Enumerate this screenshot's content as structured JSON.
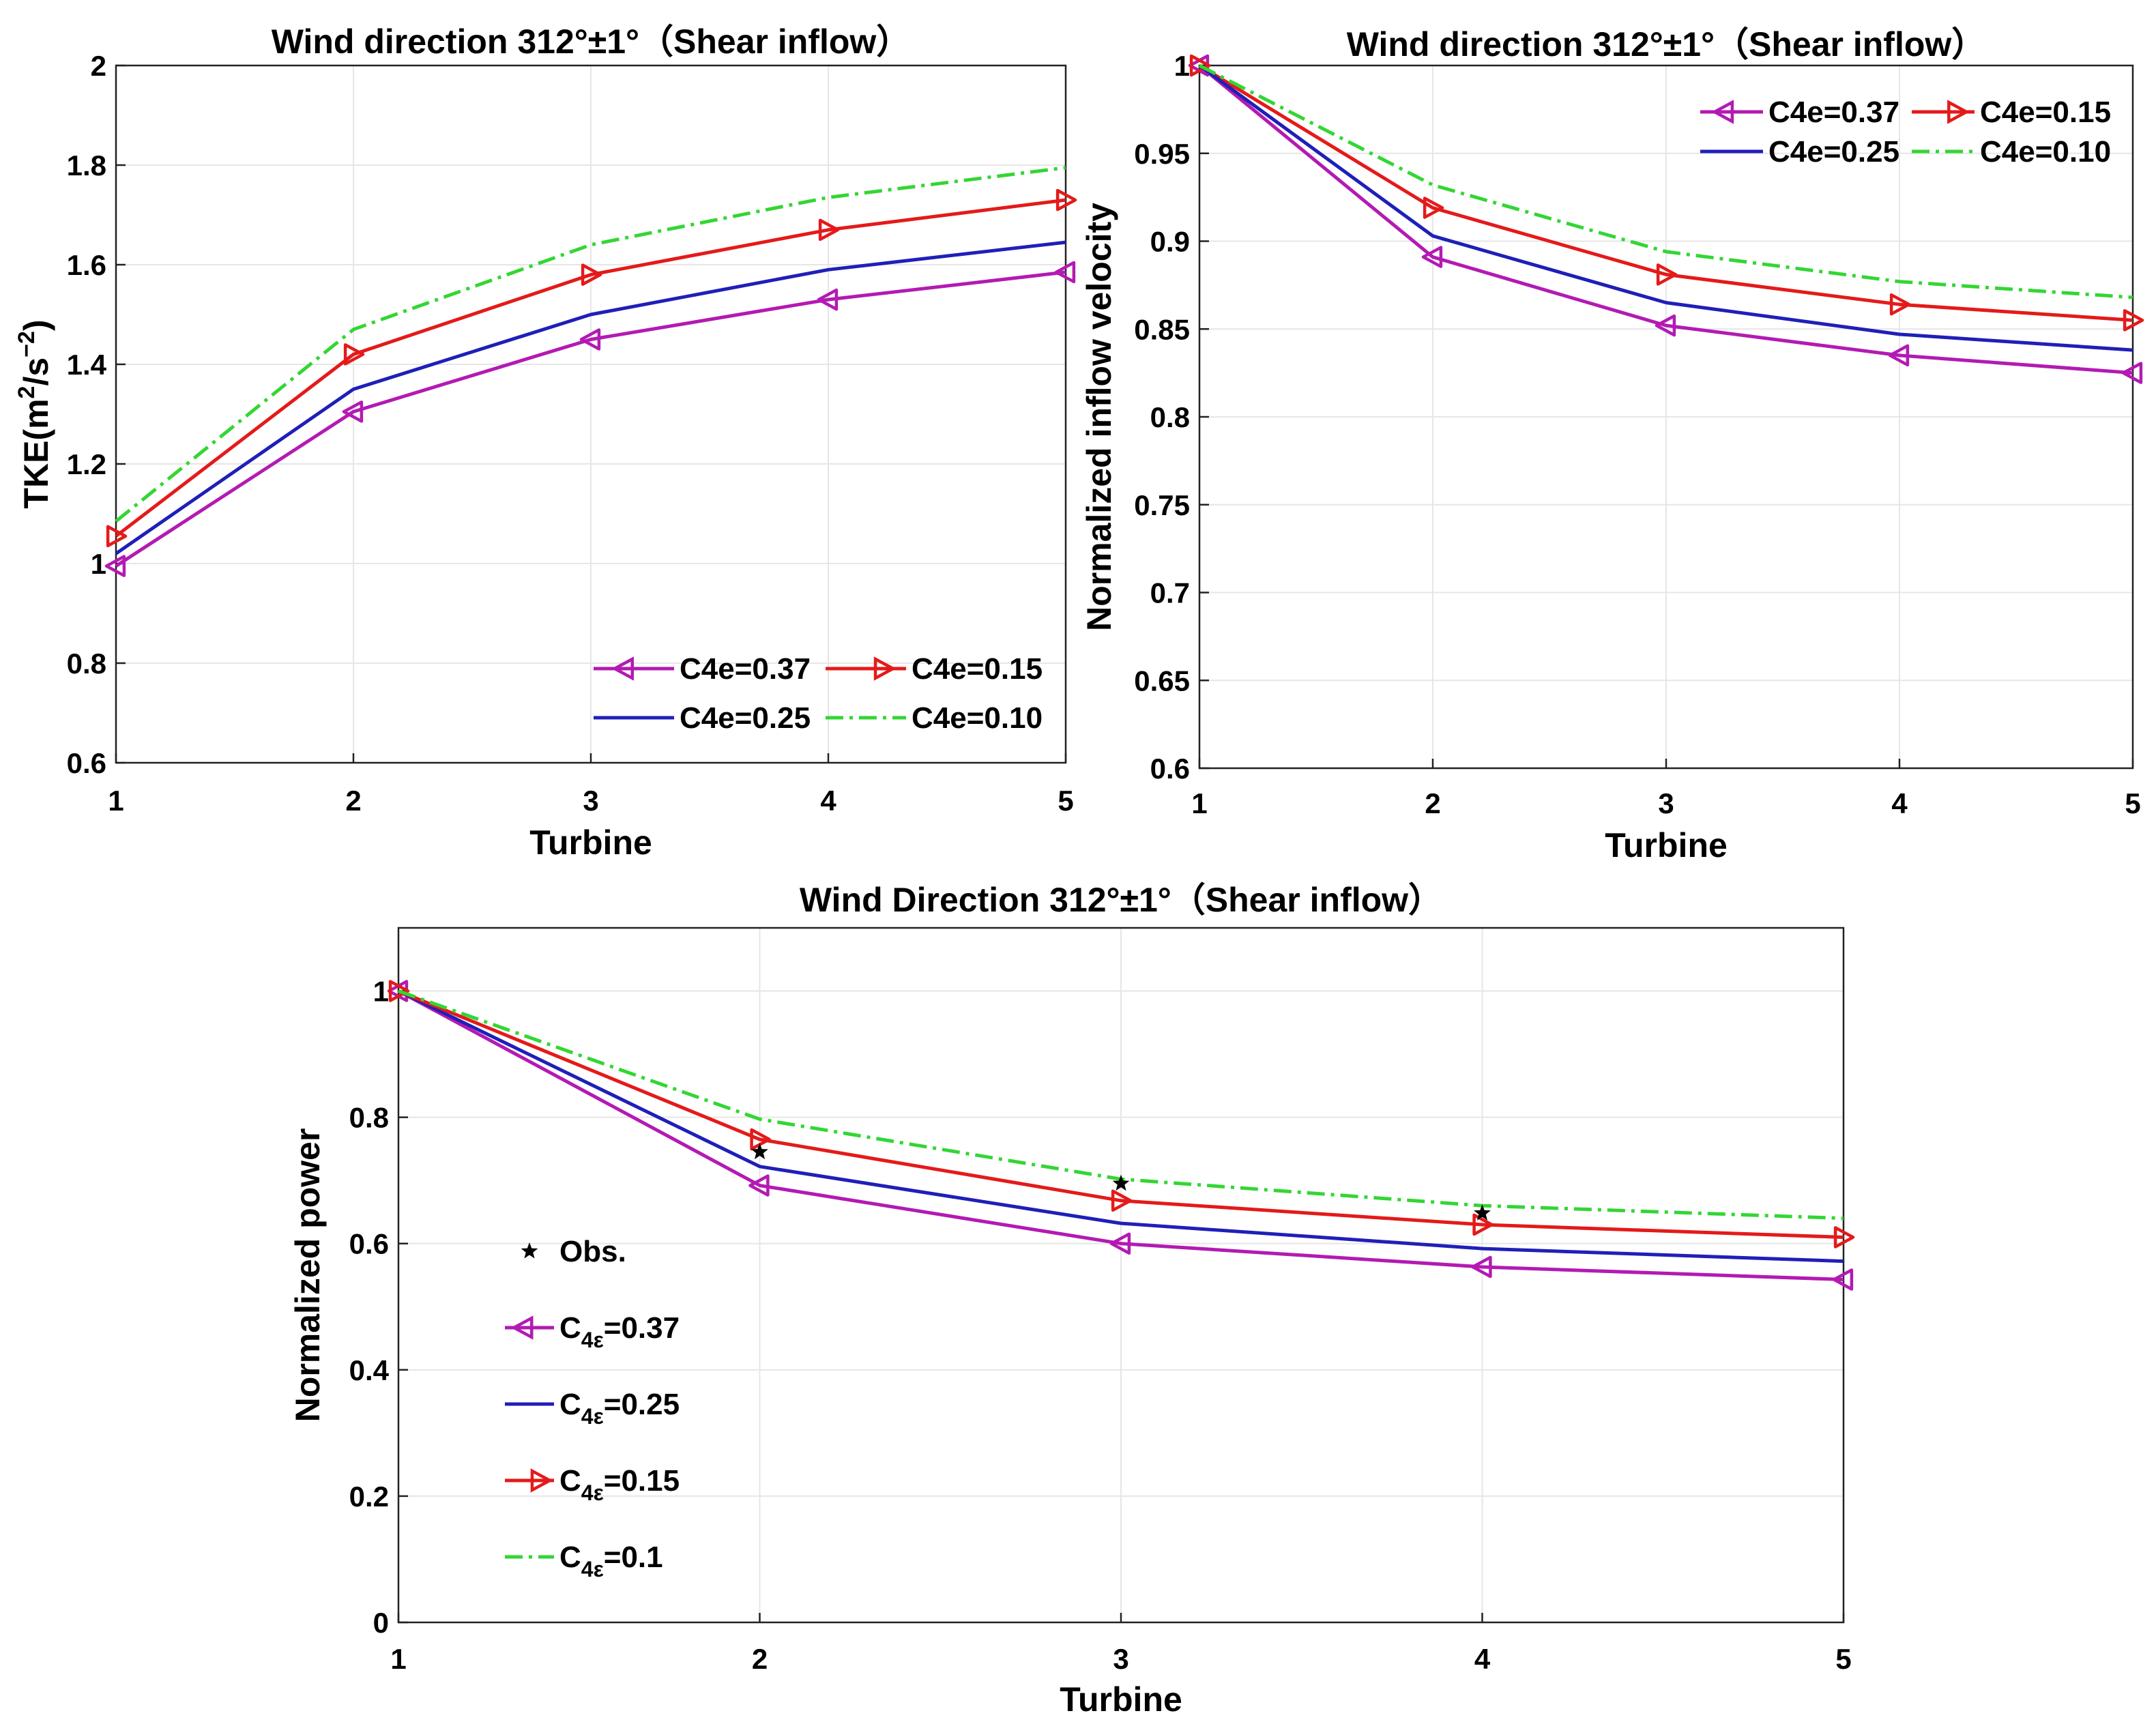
{
  "colors": {
    "c037": "#b31ab3",
    "c025": "#1f1fb8",
    "c015": "#e41a1a",
    "c010": "#33d633",
    "obs": "#000000"
  },
  "chart_data": [
    {
      "type": "line",
      "title": "Wind direction 312°±1°（Shear inflow）",
      "xlabel": "Turbine",
      "ylabel": "TKE(m2/s−2)",
      "ylabel_parts": {
        "base": "TKE(m",
        "sup1": "2",
        "mid": "/s",
        "sup2": "−2",
        "end": ")"
      },
      "x": [
        1,
        2,
        3,
        4,
        5
      ],
      "xlim": [
        1,
        5
      ],
      "ylim": [
        0.6,
        2
      ],
      "xticks": [
        "1",
        "2",
        "3",
        "4",
        "5"
      ],
      "yticks": [
        "0.6",
        "0.8",
        "1",
        "1.2",
        "1.4",
        "1.6",
        "1.8",
        "2"
      ],
      "ytick_values": [
        0.6,
        0.8,
        1.0,
        1.2,
        1.4,
        1.6,
        1.8,
        2.0
      ],
      "grid": true,
      "legend_position": "bottom-right",
      "legend_layout": "2x2",
      "series": [
        {
          "name": "C4e=0.37",
          "values": [
            0.995,
            1.305,
            1.45,
            1.53,
            1.585
          ],
          "color_key": "c037",
          "marker": "tri-left",
          "dash": "solid"
        },
        {
          "name": "C4e=0.15",
          "values": [
            1.055,
            1.42,
            1.58,
            1.67,
            1.73
          ],
          "color_key": "c015",
          "marker": "tri-right",
          "dash": "solid"
        },
        {
          "name": "C4e=0.25",
          "values": [
            1.02,
            1.35,
            1.5,
            1.59,
            1.645
          ],
          "color_key": "c025",
          "marker": "none",
          "dash": "solid"
        },
        {
          "name": "C4e=0.10",
          "values": [
            1.085,
            1.47,
            1.64,
            1.735,
            1.795
          ],
          "color_key": "c010",
          "marker": "none",
          "dash": "dashdot"
        }
      ]
    },
    {
      "type": "line",
      "title": "Wind direction 312°±1°（Shear inflow）",
      "xlabel": "Turbine",
      "ylabel": "Normalized inflow velocity",
      "x": [
        1,
        2,
        3,
        4,
        5
      ],
      "xlim": [
        1,
        5
      ],
      "ylim": [
        0.6,
        1.0
      ],
      "xticks": [
        "1",
        "2",
        "3",
        "4",
        "5"
      ],
      "yticks": [
        "0.6",
        "0.65",
        "0.7",
        "0.75",
        "0.8",
        "0.85",
        "0.9",
        "0.95",
        "1"
      ],
      "ytick_values": [
        0.6,
        0.65,
        0.7,
        0.75,
        0.8,
        0.85,
        0.9,
        0.95,
        1.0
      ],
      "grid": true,
      "legend_position": "top-right",
      "legend_layout": "2x2",
      "series": [
        {
          "name": "C4e=0.37",
          "values": [
            1.0,
            0.891,
            0.852,
            0.835,
            0.825
          ],
          "color_key": "c037",
          "marker": "tri-left",
          "dash": "solid"
        },
        {
          "name": "C4e=0.15",
          "values": [
            1.0,
            0.919,
            0.881,
            0.864,
            0.855
          ],
          "color_key": "c015",
          "marker": "tri-right",
          "dash": "solid"
        },
        {
          "name": "C4e=0.25",
          "values": [
            1.0,
            0.903,
            0.865,
            0.847,
            0.838
          ],
          "color_key": "c025",
          "marker": "none",
          "dash": "solid"
        },
        {
          "name": "C4e=0.10",
          "values": [
            1.0,
            0.932,
            0.894,
            0.877,
            0.868
          ],
          "color_key": "c010",
          "marker": "none",
          "dash": "dashdot"
        }
      ]
    },
    {
      "type": "line",
      "title": "Wind Direction 312°±1°（Shear inflow）",
      "xlabel": "Turbine",
      "ylabel": "Normalized power",
      "x": [
        1,
        2,
        3,
        4,
        5
      ],
      "xlim": [
        1,
        5
      ],
      "ylim": [
        0,
        1.1
      ],
      "xticks": [
        "1",
        "2",
        "3",
        "4",
        "5"
      ],
      "yticks": [
        "0",
        "0.2",
        "0.4",
        "0.6",
        "0.8",
        "1"
      ],
      "ytick_values": [
        0,
        0.2,
        0.4,
        0.6,
        0.8,
        1.0
      ],
      "grid": true,
      "legend_position": "left",
      "legend_layout": "vertical",
      "observations": {
        "name": "Obs.",
        "x": [
          2,
          3,
          4
        ],
        "values": [
          0.745,
          0.695,
          0.648
        ]
      },
      "series": [
        {
          "name": "C4ε=0.37",
          "label_prefix": "C",
          "label_sub": "4ε",
          "label_suffix": "=0.37",
          "values": [
            1.0,
            0.692,
            0.6,
            0.563,
            0.543
          ],
          "color_key": "c037",
          "marker": "tri-left",
          "dash": "solid"
        },
        {
          "name": "C4ε=0.25",
          "label_prefix": "C",
          "label_sub": "4ε",
          "label_suffix": "=0.25",
          "values": [
            1.0,
            0.722,
            0.632,
            0.592,
            0.572
          ],
          "color_key": "c025",
          "marker": "none",
          "dash": "solid"
        },
        {
          "name": "C4ε=0.15",
          "label_prefix": "C",
          "label_sub": "4ε",
          "label_suffix": "=0.15",
          "values": [
            1.0,
            0.765,
            0.668,
            0.63,
            0.61
          ],
          "color_key": "c015",
          "marker": "tri-right",
          "dash": "solid"
        },
        {
          "name": "C4ε=0.1",
          "label_prefix": "C",
          "label_sub": "4ε",
          "label_suffix": "=0.1",
          "values": [
            1.0,
            0.797,
            0.702,
            0.66,
            0.64
          ],
          "color_key": "c010",
          "marker": "none",
          "dash": "dashdot"
        }
      ]
    }
  ]
}
